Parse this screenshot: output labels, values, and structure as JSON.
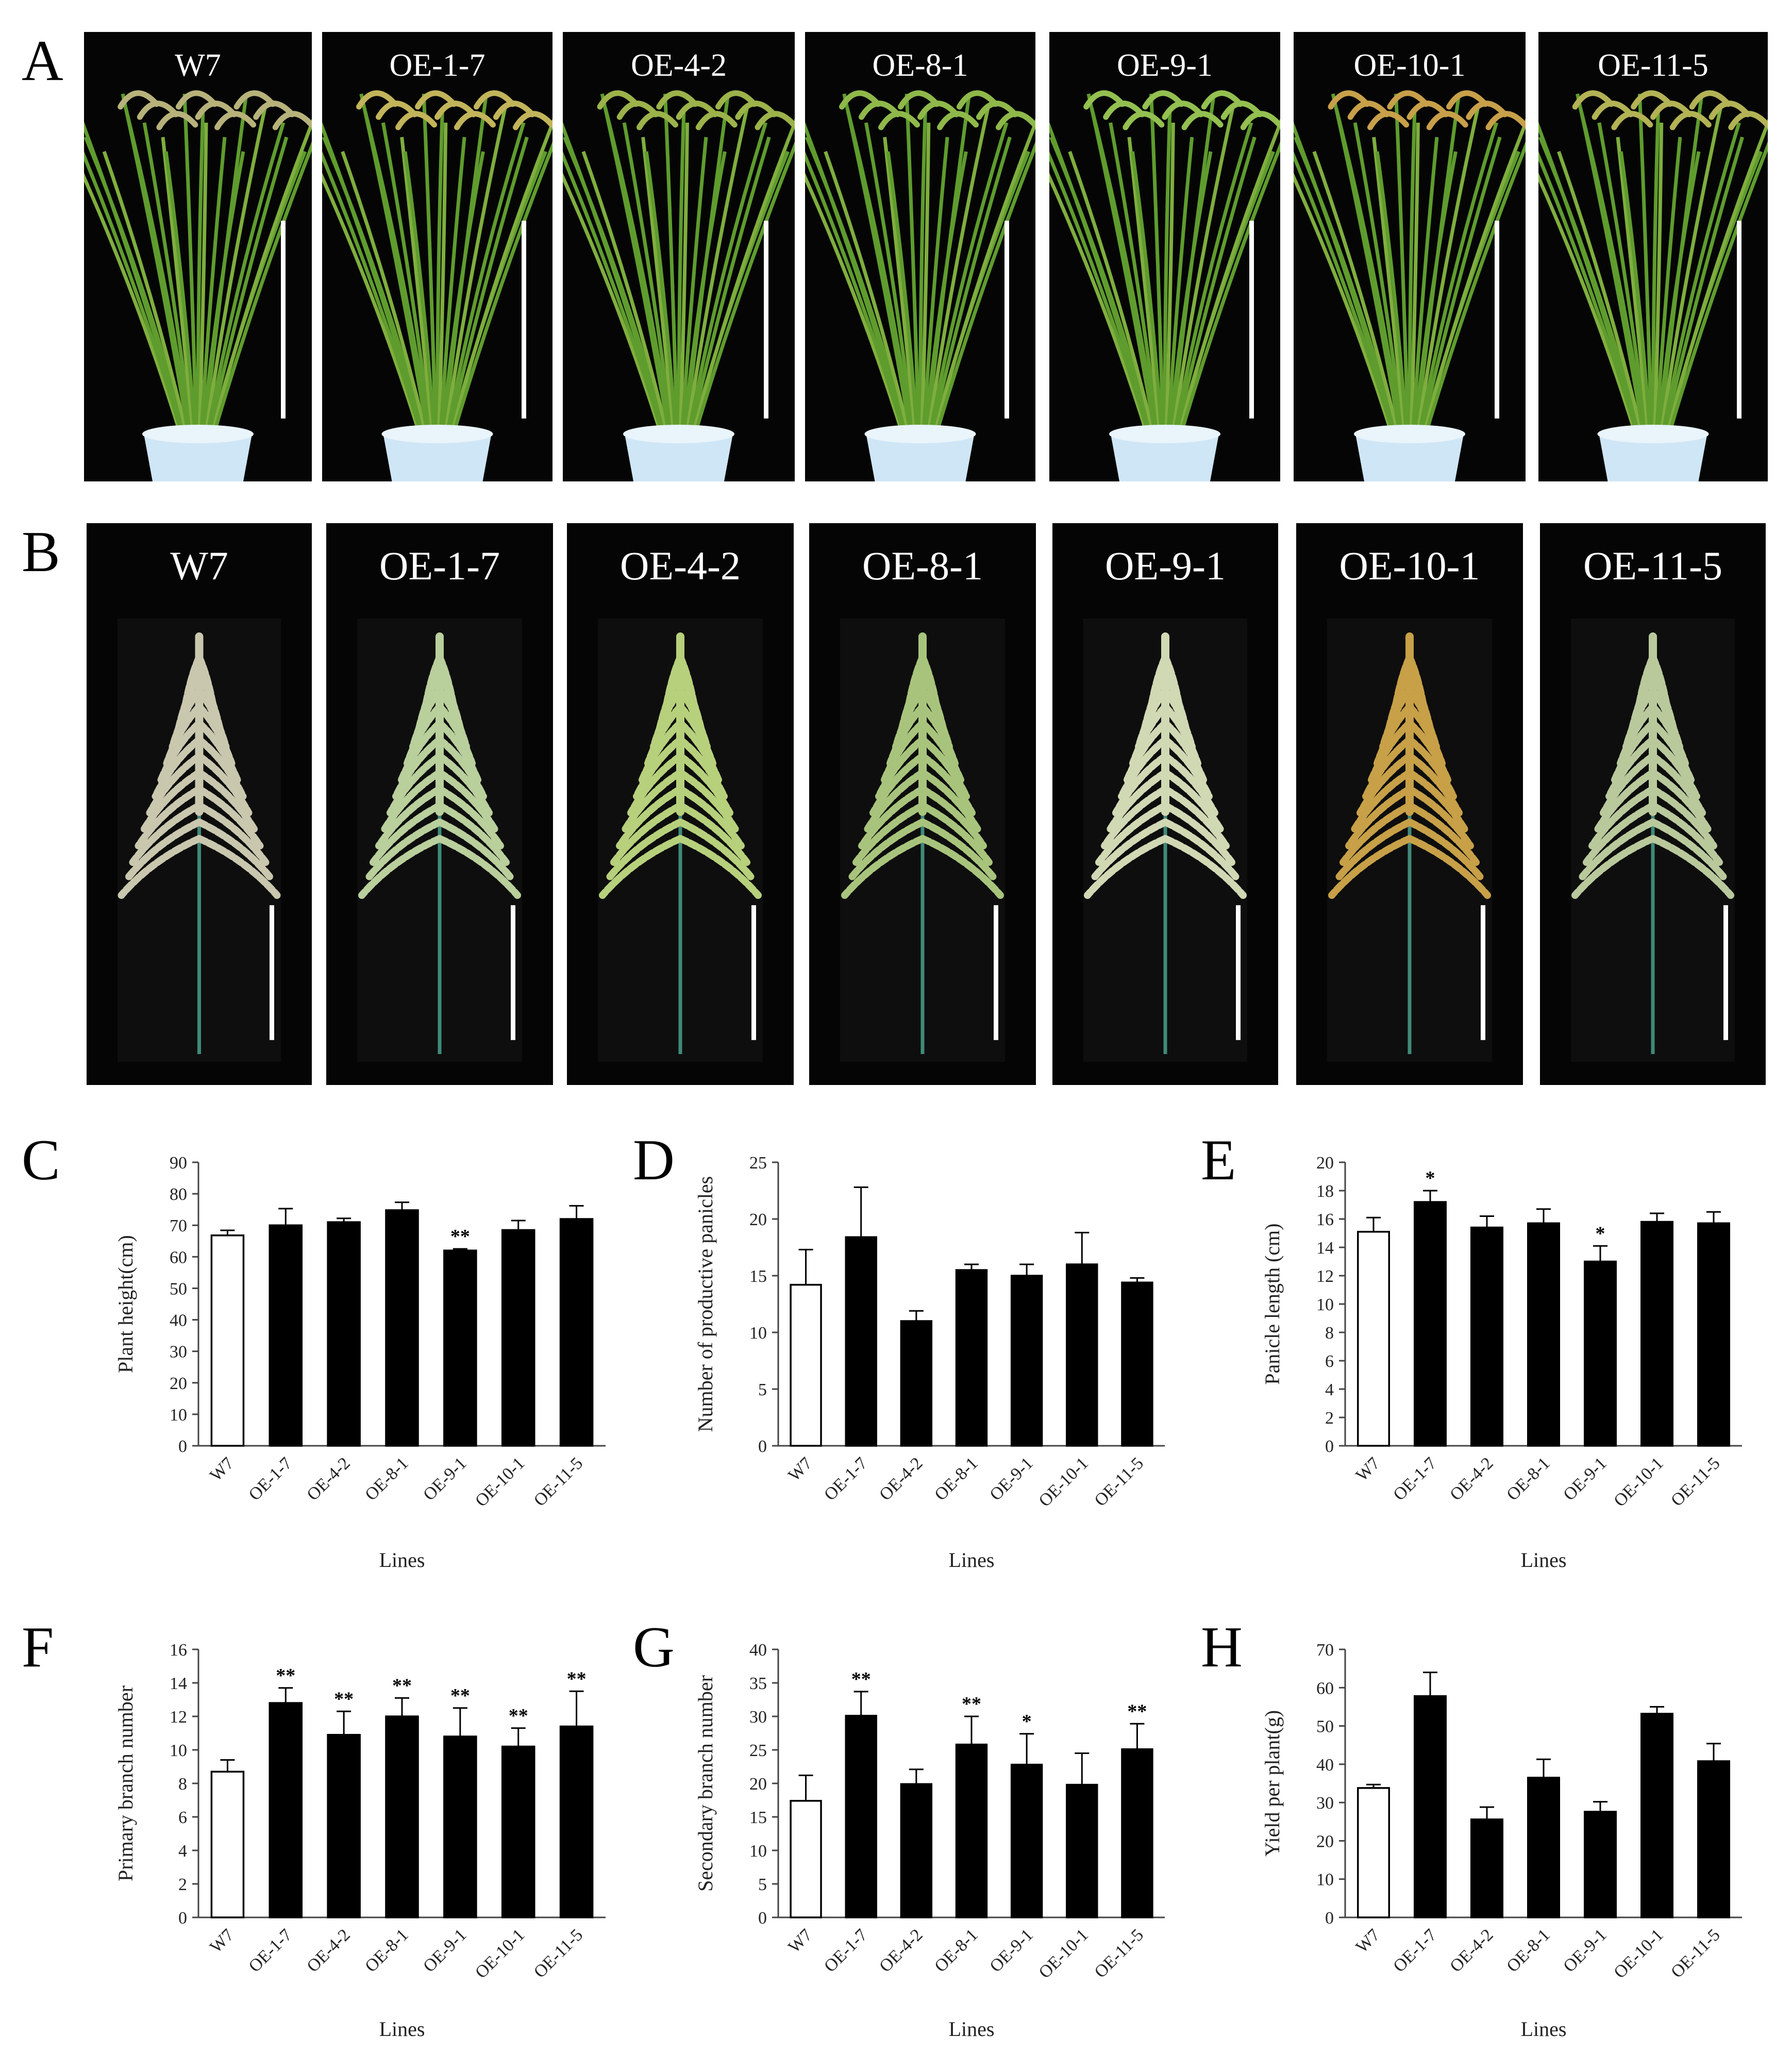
{
  "figure": {
    "panel_labels": [
      "A",
      "B",
      "C",
      "D",
      "E",
      "F",
      "G",
      "H"
    ],
    "photo_rows": [
      {
        "panel": "A",
        "kind": "whole-plant",
        "labels": [
          "W7",
          "OE-1-7",
          "OE-4-2",
          "OE-8-1",
          "OE-9-1",
          "OE-10-1",
          "OE-11-5"
        ],
        "panicle_colors": [
          "#b7b27a",
          "#c2b45a",
          "#9cb24a",
          "#8fb84a",
          "#93c050",
          "#c8a04a",
          "#b3b255"
        ],
        "leaf_color": "#5f9c2e",
        "pot_color": "#cfe6f6"
      },
      {
        "panel": "B",
        "kind": "panicle",
        "labels": [
          "W7",
          "OE-1-7",
          "OE-4-2",
          "OE-8-1",
          "OE-9-1",
          "OE-10-1",
          "OE-11-5"
        ],
        "panicle_colors": [
          "#c9c7ae",
          "#b9cf9c",
          "#b7d07c",
          "#a8c47c",
          "#d1d8b4",
          "#c7a048",
          "#b9c99c"
        ],
        "stem_color": "#3f8a78"
      }
    ]
  },
  "chart_data": [
    {
      "panel": "C",
      "type": "bar",
      "categories": [
        "W7",
        "OE-1-7",
        "OE-4-2",
        "OE-8-1",
        "OE-9-1",
        "OE-10-1",
        "OE-11-5"
      ],
      "values": [
        66.8,
        70.0,
        71.0,
        74.8,
        62.0,
        68.5,
        72.0
      ],
      "errors": [
        1.6,
        5.3,
        1.2,
        2.5,
        0.5,
        3.0,
        4.2
      ],
      "significance": [
        "",
        "",
        "",
        "",
        "**",
        "",
        ""
      ],
      "bar_styles": [
        "open",
        "filled",
        "filled",
        "filled",
        "filled",
        "filled",
        "filled"
      ],
      "xlabel": "Lines",
      "ylabel": "Plant height(cm)",
      "ylim": [
        0,
        90
      ],
      "yticks": [
        0,
        10,
        20,
        30,
        40,
        50,
        60,
        70,
        80,
        90
      ]
    },
    {
      "panel": "D",
      "type": "bar",
      "categories": [
        "W7",
        "OE-1-7",
        "OE-4-2",
        "OE-8-1",
        "OE-9-1",
        "OE-10-1",
        "OE-11-5"
      ],
      "values": [
        14.2,
        18.4,
        11.0,
        15.5,
        15.0,
        16.0,
        14.4
      ],
      "errors": [
        3.1,
        4.4,
        0.9,
        0.5,
        1.0,
        2.8,
        0.4
      ],
      "significance": [
        "",
        "",
        "",
        "",
        "",
        "",
        ""
      ],
      "bar_styles": [
        "open",
        "filled",
        "filled",
        "filled",
        "filled",
        "filled",
        "filled"
      ],
      "xlabel": "Lines",
      "ylabel": "Number of productive panicles",
      "ylim": [
        0,
        25
      ],
      "yticks": [
        0,
        5,
        10,
        15,
        20,
        25
      ]
    },
    {
      "panel": "E",
      "type": "bar",
      "categories": [
        "W7",
        "OE-1-7",
        "OE-4-2",
        "OE-8-1",
        "OE-9-1",
        "OE-10-1",
        "OE-11-5"
      ],
      "values": [
        15.1,
        17.2,
        15.4,
        15.7,
        13.0,
        15.8,
        15.7
      ],
      "errors": [
        1.0,
        0.8,
        0.8,
        1.0,
        1.1,
        0.6,
        0.8
      ],
      "significance": [
        "",
        "*",
        "",
        "",
        "*",
        "",
        ""
      ],
      "bar_styles": [
        "open",
        "filled",
        "filled",
        "filled",
        "filled",
        "filled",
        "filled"
      ],
      "xlabel": "Lines",
      "ylabel": "Panicle length (cm)",
      "ylim": [
        0,
        20
      ],
      "yticks": [
        0,
        2,
        4,
        6,
        8,
        10,
        12,
        14,
        16,
        18,
        20
      ]
    },
    {
      "panel": "F",
      "type": "bar",
      "categories": [
        "W7",
        "OE-1-7",
        "OE-4-2",
        "OE-8-1",
        "OE-9-1",
        "OE-10-1",
        "OE-11-5"
      ],
      "values": [
        8.7,
        12.8,
        10.9,
        12.0,
        10.8,
        10.2,
        11.4
      ],
      "errors": [
        0.7,
        0.9,
        1.4,
        1.1,
        1.7,
        1.1,
        2.1
      ],
      "significance": [
        "",
        "**",
        "**",
        "**",
        "**",
        "**",
        "**"
      ],
      "bar_styles": [
        "open",
        "filled",
        "filled",
        "filled",
        "filled",
        "filled",
        "filled"
      ],
      "xlabel": "Lines",
      "ylabel": "Primary branch number",
      "ylim": [
        0,
        16
      ],
      "yticks": [
        0,
        2,
        4,
        6,
        8,
        10,
        12,
        14,
        16
      ]
    },
    {
      "panel": "G",
      "type": "bar",
      "categories": [
        "W7",
        "OE-1-7",
        "OE-4-2",
        "OE-8-1",
        "OE-9-1",
        "OE-10-1",
        "OE-11-5"
      ],
      "values": [
        17.4,
        30.1,
        19.9,
        25.8,
        22.8,
        19.8,
        25.1
      ],
      "errors": [
        3.8,
        3.6,
        2.2,
        4.2,
        4.6,
        4.7,
        3.8
      ],
      "significance": [
        "",
        "**",
        "",
        "**",
        "*",
        "",
        "**"
      ],
      "bar_styles": [
        "open",
        "filled",
        "filled",
        "filled",
        "filled",
        "filled",
        "filled"
      ],
      "xlabel": "Lines",
      "ylabel": "Secondary branch number",
      "ylim": [
        0,
        40
      ],
      "yticks": [
        0,
        5,
        10,
        15,
        20,
        25,
        30,
        35,
        40
      ]
    },
    {
      "panel": "H",
      "type": "bar",
      "categories": [
        "W7",
        "OE-1-7",
        "OE-4-2",
        "OE-8-1",
        "OE-9-1",
        "OE-10-1",
        "OE-11-5"
      ],
      "values": [
        33.8,
        57.8,
        25.6,
        36.5,
        27.6,
        53.2,
        40.8
      ],
      "errors": [
        0.9,
        6.2,
        3.2,
        4.8,
        2.6,
        1.8,
        4.6
      ],
      "significance": [
        "",
        "",
        "",
        "",
        "",
        "",
        ""
      ],
      "bar_styles": [
        "open",
        "filled",
        "filled",
        "filled",
        "filled",
        "filled",
        "filled"
      ],
      "xlabel": "Lines",
      "ylabel": "Yield per plant(g)",
      "ylim": [
        0,
        70
      ],
      "yticks": [
        0,
        10,
        20,
        30,
        40,
        50,
        60,
        70
      ]
    }
  ]
}
